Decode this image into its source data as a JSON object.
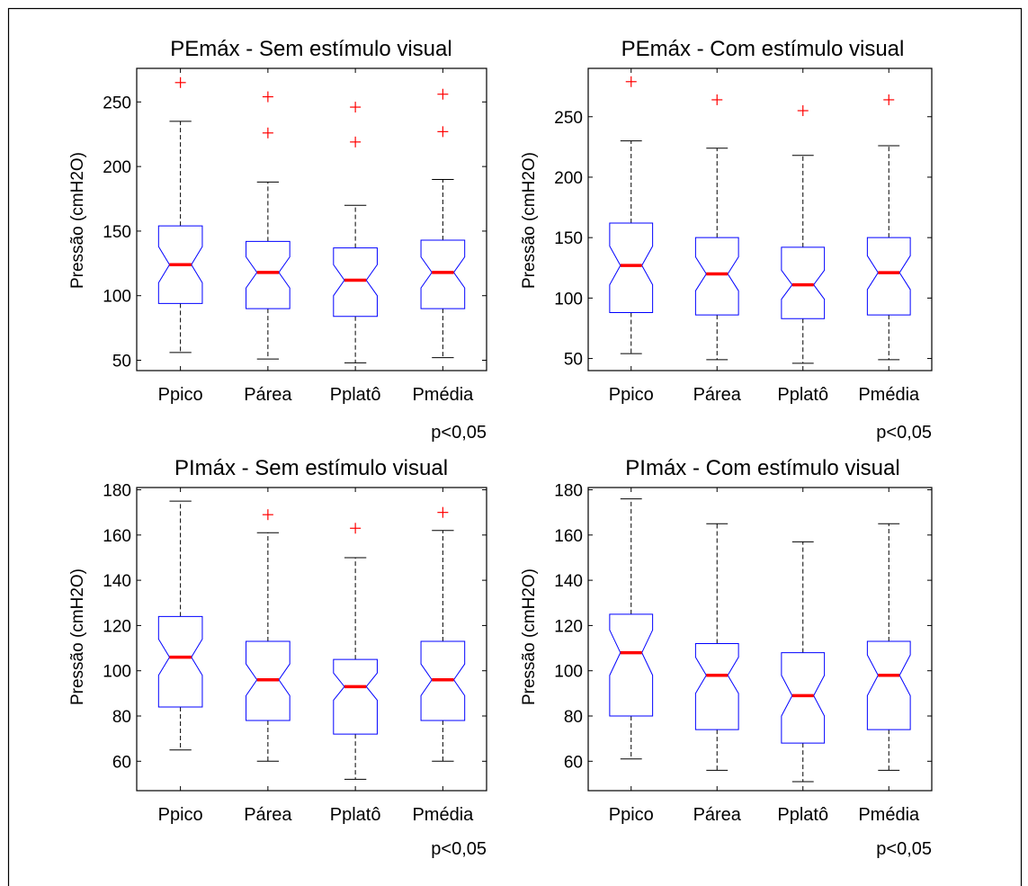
{
  "chart_data": [
    {
      "type": "boxplot",
      "notched": true,
      "title": "PEmáx - Sem estímulo visual",
      "ylabel": "Pressão (cmH2O)",
      "categories": [
        "Ppico",
        "Párea",
        "Pplatô",
        "Pmédia"
      ],
      "yticks": [
        50,
        100,
        150,
        200,
        250
      ],
      "ylim": [
        42,
        276
      ],
      "note": "p<0,05",
      "boxes": [
        {
          "whisker_low": 56,
          "q1": 94,
          "median": 124,
          "q3": 154,
          "whisker_high": 235,
          "notch_low": 110,
          "notch_high": 138,
          "outliers": [
            265
          ]
        },
        {
          "whisker_low": 51,
          "q1": 90,
          "median": 118,
          "q3": 142,
          "whisker_high": 188,
          "notch_low": 106,
          "notch_high": 130,
          "outliers": [
            226,
            254
          ]
        },
        {
          "whisker_low": 48,
          "q1": 84,
          "median": 112,
          "q3": 137,
          "whisker_high": 170,
          "notch_low": 100,
          "notch_high": 124,
          "outliers": [
            219,
            246
          ]
        },
        {
          "whisker_low": 52,
          "q1": 90,
          "median": 118,
          "q3": 143,
          "whisker_high": 190,
          "notch_low": 106,
          "notch_high": 130,
          "outliers": [
            227,
            256
          ]
        }
      ]
    },
    {
      "type": "boxplot",
      "notched": true,
      "title": "PEmáx - Com estímulo visual",
      "ylabel": "Pressão (cmH2O)",
      "categories": [
        "Ppico",
        "Párea",
        "Pplatô",
        "Pmédia"
      ],
      "yticks": [
        50,
        100,
        150,
        200,
        250
      ],
      "ylim": [
        40,
        290
      ],
      "note": "p<0,05",
      "boxes": [
        {
          "whisker_low": 54,
          "q1": 88,
          "median": 127,
          "q3": 162,
          "whisker_high": 230,
          "notch_low": 111,
          "notch_high": 143,
          "outliers": [
            279
          ]
        },
        {
          "whisker_low": 49,
          "q1": 86,
          "median": 120,
          "q3": 150,
          "whisker_high": 224,
          "notch_low": 106,
          "notch_high": 134,
          "outliers": [
            264
          ]
        },
        {
          "whisker_low": 46,
          "q1": 83,
          "median": 111,
          "q3": 142,
          "whisker_high": 218,
          "notch_low": 99,
          "notch_high": 123,
          "outliers": [
            255
          ]
        },
        {
          "whisker_low": 49,
          "q1": 86,
          "median": 121,
          "q3": 150,
          "whisker_high": 226,
          "notch_low": 107,
          "notch_high": 135,
          "outliers": [
            264
          ]
        }
      ]
    },
    {
      "type": "boxplot",
      "notched": true,
      "title": "PImáx - Sem estímulo visual",
      "ylabel": "Pressão (cmH2O)",
      "categories": [
        "Ppico",
        "Párea",
        "Pplatô",
        "Pmédia"
      ],
      "yticks": [
        60,
        80,
        100,
        120,
        140,
        160,
        180
      ],
      "ylim": [
        47,
        181
      ],
      "note": "p<0,05",
      "boxes": [
        {
          "whisker_low": 65,
          "q1": 84,
          "median": 106,
          "q3": 124,
          "whisker_high": 175,
          "notch_low": 98,
          "notch_high": 114,
          "outliers": []
        },
        {
          "whisker_low": 60,
          "q1": 78,
          "median": 96,
          "q3": 113,
          "whisker_high": 161,
          "notch_low": 89,
          "notch_high": 103,
          "outliers": [
            169
          ]
        },
        {
          "whisker_low": 52,
          "q1": 72,
          "median": 93,
          "q3": 105,
          "whisker_high": 150,
          "notch_low": 87,
          "notch_high": 99,
          "outliers": [
            163
          ]
        },
        {
          "whisker_low": 60,
          "q1": 78,
          "median": 96,
          "q3": 113,
          "whisker_high": 162,
          "notch_low": 89,
          "notch_high": 103,
          "outliers": [
            170
          ]
        }
      ]
    },
    {
      "type": "boxplot",
      "notched": true,
      "title": "PImáx - Com estímulo visual",
      "ylabel": "Pressão (cmH2O)",
      "categories": [
        "Ppico",
        "Párea",
        "Pplatô",
        "Pmédia"
      ],
      "yticks": [
        60,
        80,
        100,
        120,
        140,
        160,
        180
      ],
      "ylim": [
        47,
        181
      ],
      "note": "p<0,05",
      "boxes": [
        {
          "whisker_low": 61,
          "q1": 80,
          "median": 108,
          "q3": 125,
          "whisker_high": 176,
          "notch_low": 98,
          "notch_high": 118,
          "outliers": []
        },
        {
          "whisker_low": 56,
          "q1": 74,
          "median": 98,
          "q3": 112,
          "whisker_high": 165,
          "notch_low": 90,
          "notch_high": 106,
          "outliers": []
        },
        {
          "whisker_low": 51,
          "q1": 68,
          "median": 89,
          "q3": 108,
          "whisker_high": 157,
          "notch_low": 80,
          "notch_high": 98,
          "outliers": []
        },
        {
          "whisker_low": 56,
          "q1": 74,
          "median": 98,
          "q3": 113,
          "whisker_high": 165,
          "notch_low": 89,
          "notch_high": 107,
          "outliers": []
        }
      ]
    }
  ],
  "colors": {
    "box": "#0000ff",
    "median": "#ff0000",
    "outlier": "#ff0000",
    "whisker": "#000000",
    "axis": "#000000"
  }
}
